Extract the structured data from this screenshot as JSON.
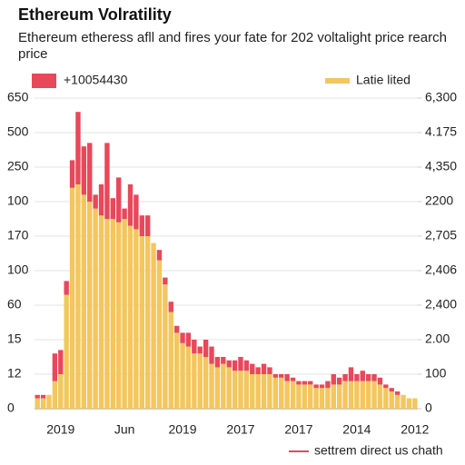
{
  "chart_data": {
    "type": "stacked-bar",
    "title": "Ethereum Volratility",
    "subtitle": "Ethereum etheress afll and fires your fate for 202 voltalight price rearch price",
    "note": "settrem direct us chath",
    "legend": "top",
    "grid": true,
    "categories": [
      null,
      null,
      null,
      null,
      "2019",
      null,
      null,
      null,
      null,
      null,
      null,
      null,
      null,
      null,
      null,
      "Jun",
      null,
      null,
      null,
      null,
      null,
      null,
      null,
      null,
      null,
      "2019",
      null,
      null,
      null,
      null,
      null,
      null,
      null,
      null,
      null,
      "2017",
      null,
      null,
      null,
      null,
      null,
      null,
      null,
      null,
      null,
      "2017",
      null,
      null,
      null,
      null,
      null,
      null,
      null,
      null,
      null,
      "2014",
      null,
      null,
      null,
      null,
      null,
      null,
      null,
      null,
      null,
      "2012"
    ],
    "series": [
      {
        "name": "Latie lited",
        "color": "#f4c65e",
        "values": [
          0.3,
          0.3,
          0.4,
          0.8,
          1.0,
          3.3,
          6.4,
          6.5,
          6.2,
          6.0,
          5.8,
          5.6,
          5.5,
          5.5,
          5.4,
          5.5,
          5.3,
          5.2,
          5.0,
          5.0,
          4.8,
          4.3,
          3.6,
          2.8,
          2.2,
          1.9,
          1.8,
          1.6,
          1.6,
          1.5,
          1.3,
          1.2,
          1.3,
          1.2,
          1.1,
          1.1,
          1.1,
          1.0,
          1.0,
          1.0,
          1.0,
          0.9,
          0.9,
          0.8,
          0.8,
          0.7,
          0.7,
          0.7,
          0.6,
          0.6,
          0.6,
          0.7,
          0.7,
          0.8,
          0.8,
          0.8,
          0.8,
          0.8,
          0.8,
          0.7,
          0.6,
          0.5,
          0.4,
          0.4,
          0.3,
          0.3
        ]
      },
      {
        "name": "+10054430",
        "color": "#e8485a",
        "values": [
          0.1,
          0.1,
          0,
          0.8,
          0.7,
          0.4,
          0.8,
          2.1,
          1.4,
          1.7,
          0.4,
          0.9,
          2.2,
          0.6,
          1.3,
          0.3,
          1.2,
          1.0,
          0.6,
          0.6,
          0,
          0.3,
          0.2,
          0.3,
          0.2,
          0.3,
          0.4,
          0.4,
          0.2,
          0.5,
          0.5,
          0.3,
          0.2,
          0.2,
          0.3,
          0.4,
          0.3,
          0.3,
          0.2,
          0.3,
          0.2,
          0.1,
          0.1,
          0.2,
          0.1,
          0.1,
          0.1,
          0.1,
          0.1,
          0.1,
          0.2,
          0.3,
          0.2,
          0.2,
          0.4,
          0.2,
          0.3,
          0.2,
          0.2,
          0.2,
          0.1,
          0.1,
          0.1,
          0,
          0,
          0
        ]
      }
    ],
    "ylim": [
      0,
      9
    ],
    "yticks": [
      {
        "value": 0,
        "label": "0"
      },
      {
        "value": 1,
        "label": "12"
      },
      {
        "value": 2,
        "label": "15"
      },
      {
        "value": 3,
        "label": "60"
      },
      {
        "value": 4,
        "label": "100"
      },
      {
        "value": 5,
        "label": "170"
      },
      {
        "value": 6,
        "label": "100"
      },
      {
        "value": 7,
        "label": "250"
      },
      {
        "value": 8,
        "label": "500"
      },
      {
        "value": 9,
        "label": "650"
      }
    ],
    "y2lim": [
      0,
      9
    ],
    "y2ticks": [
      {
        "value": 0,
        "label": "0"
      },
      {
        "value": 1,
        "label": "100"
      },
      {
        "value": 2,
        "label": "2.00"
      },
      {
        "value": 3,
        "label": "2,400"
      },
      {
        "value": 4,
        "label": "2,406"
      },
      {
        "value": 5,
        "label": "2,705"
      },
      {
        "value": 6,
        "label": "2200"
      },
      {
        "value": 7,
        "label": "4,350"
      },
      {
        "value": 8,
        "label": "4.175"
      },
      {
        "value": 9,
        "label": "6,300"
      }
    ]
  }
}
